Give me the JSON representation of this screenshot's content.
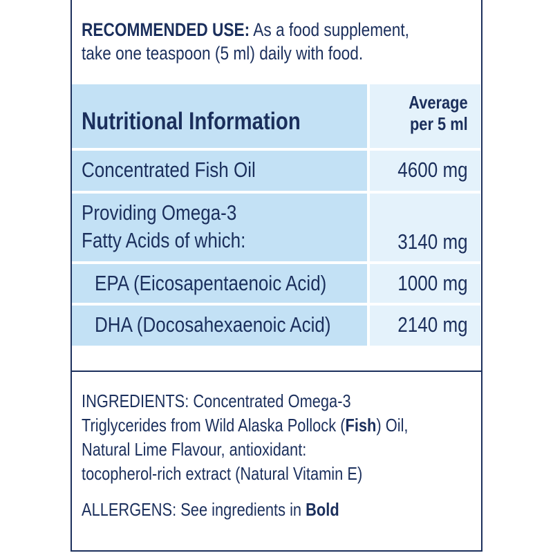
{
  "recommended_use": {
    "label": "RECOMMENDED USE:",
    "line1": "As a food supplement,",
    "line2": "take one teaspoon (5 ml)  daily with food."
  },
  "table": {
    "title": "Nutritional Information",
    "column_header_line1": "Average",
    "column_header_line2": "per 5 ml",
    "rows": [
      {
        "label": "Concentrated Fish Oil",
        "value": "4600 mg"
      },
      {
        "label_line1": "Providing Omega-3",
        "label_line2": "Fatty Acids of which:",
        "value": "3140 mg"
      },
      {
        "label": "EPA (Eicosapentaenoic Acid)",
        "value": "1000 mg"
      },
      {
        "label": "DHA (Docosahexaenoic Acid)",
        "value": "2140 mg"
      }
    ],
    "colors": {
      "label_cell": "#c3e1f5",
      "value_cell": "#e4f2fb",
      "text": "#1b2f5c"
    }
  },
  "ingredients": {
    "line1": "INGREDIENTS: Concentrated Omega-3",
    "line2_a": "Triglycerides from Wild Alaska Pollock (",
    "line2_bold": "Fish",
    "line2_b": ") Oil,",
    "line3": "Natural Lime Flavour, antioxidant:",
    "line4": "tocopherol-rich extract (Natural Vitamin E)"
  },
  "allergens": {
    "text": "ALLERGENS: See ingredients in ",
    "bold": "Bold"
  }
}
